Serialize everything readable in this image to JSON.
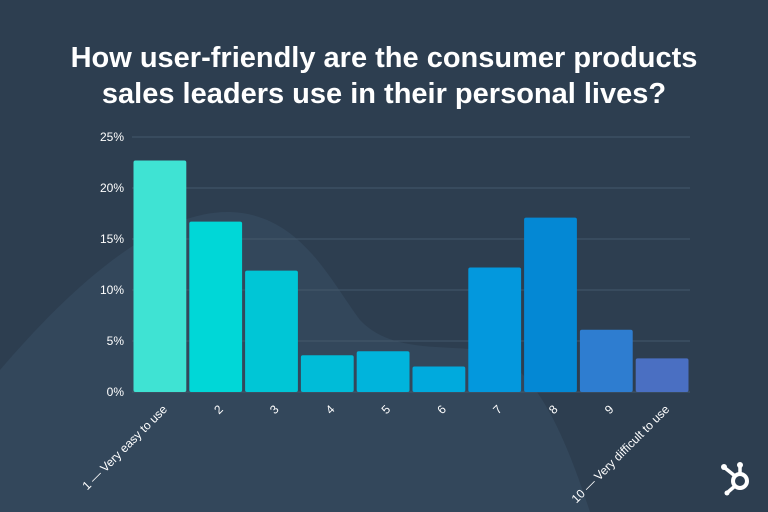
{
  "title_lines": [
    "How user-friendly are the consumer products",
    "sales leaders use in their personal lives?"
  ],
  "logo": {
    "icon": "hubspot-sprocket-icon"
  },
  "colors": {
    "background": "#2d3e50",
    "gridline": "#44586b",
    "text": "#ffffff"
  },
  "chart_data": {
    "type": "bar",
    "title": "How user-friendly are the consumer products sales leaders use in their personal lives?",
    "categories": [
      "1 — Very easy to use",
      "2",
      "3",
      "4",
      "5",
      "6",
      "7",
      "8",
      "9",
      "10 — Very difficult to use"
    ],
    "values": [
      22.7,
      16.7,
      11.9,
      3.6,
      4.0,
      2.5,
      12.2,
      17.1,
      6.1,
      3.3
    ],
    "bar_colors": [
      "#3fe3d3",
      "#00d7d7",
      "#00c6d6",
      "#00bcd8",
      "#00b4dc",
      "#00aadd",
      "#0398dd",
      "#0488d4",
      "#2e7dd0",
      "#4a6fc2"
    ],
    "yticks": [
      "0%",
      "5%",
      "10%",
      "15%",
      "20%",
      "25%"
    ],
    "ytick_values": [
      0,
      5,
      10,
      15,
      20,
      25
    ],
    "ylim": [
      0,
      25
    ],
    "grid": true,
    "xlabel": "",
    "ylabel": ""
  }
}
